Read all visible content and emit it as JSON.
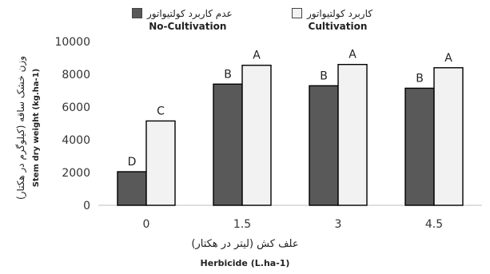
{
  "legend": {
    "no_cultivation_fa": "عدم کاربرد کولتیواتور",
    "no_cultivation_en": "No-Cultivation",
    "cultivation_fa": "کاربرد کولتیواتور",
    "cultivation_en": "Cultivation"
  },
  "axes": {
    "x_title_fa": "علف کش (لیتر در هکتار)",
    "x_title_en": "Herbicide (L.ha-1)",
    "y_title_fa": "وزن خشک ساقه (کیلوگرم در هکتار)",
    "y_title_en": "Stem dry weight (kg.ha-1)"
  },
  "chart_data": {
    "type": "bar",
    "categories": [
      "0",
      "1.5",
      "3",
      "4.5"
    ],
    "series": [
      {
        "name": "No-Cultivation",
        "values": [
          2050,
          7400,
          7300,
          7150
        ],
        "letters": [
          "D",
          "B",
          "B",
          "B"
        ],
        "color": "#595959"
      },
      {
        "name": "Cultivation",
        "values": [
          5150,
          8550,
          8600,
          8400
        ],
        "letters": [
          "C",
          "A",
          "A",
          "A"
        ],
        "color": "#f2f2f2"
      }
    ],
    "ylim": [
      0,
      10000
    ],
    "yticks": [
      "0",
      "2000",
      "4000",
      "6000",
      "8000",
      "10000"
    ],
    "grid": false
  }
}
